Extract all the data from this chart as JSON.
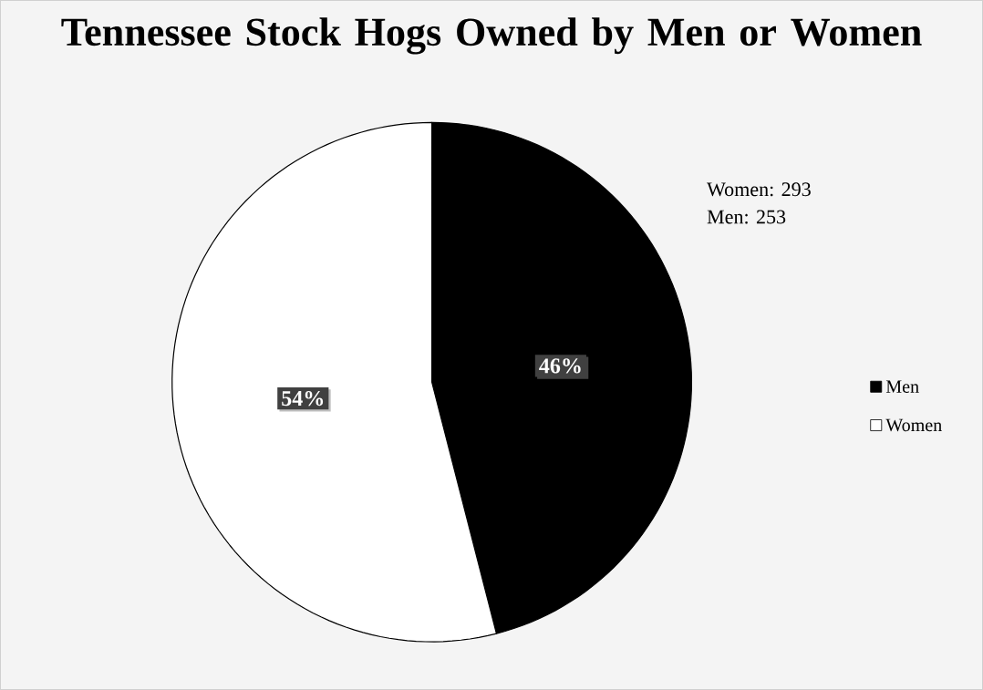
{
  "chart_data": {
    "type": "pie",
    "title": "Tennessee Stock Hogs Owned by Men or Women",
    "categories": [
      "Men",
      "Women"
    ],
    "values": [
      46,
      54
    ],
    "colors": [
      "#000000",
      "#ffffff"
    ],
    "value_labels": [
      "46%",
      "54%"
    ],
    "annotations": [
      "Women:  293",
      "Men:      253"
    ],
    "legend": "right"
  }
}
